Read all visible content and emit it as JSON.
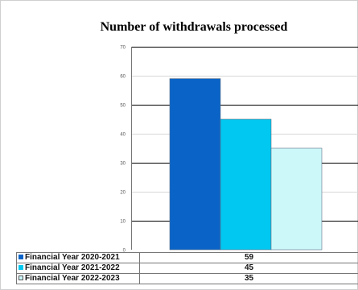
{
  "chart_data": {
    "type": "bar",
    "title": "Number of withdrawals processed",
    "categories": [
      "Financial Year 2020-2021",
      "Financial Year 2021-2022",
      "Financial Year 2022-2023"
    ],
    "values": [
      59,
      45,
      35
    ],
    "colors": [
      "#0a64c8",
      "#00c8f0",
      "#ccf8fa"
    ],
    "yticks": [
      "70",
      "60",
      "50",
      "40",
      "30",
      "20",
      "10",
      "0"
    ],
    "ylim": [
      0,
      70
    ],
    "grid": true,
    "legend": "data table below chart"
  }
}
